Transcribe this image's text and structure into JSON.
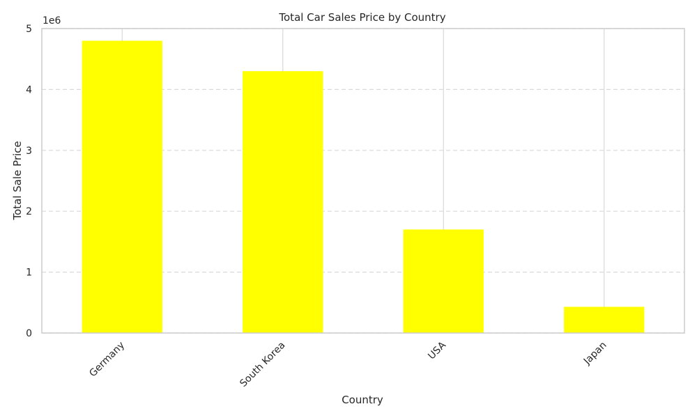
{
  "chart_data": {
    "type": "bar",
    "title": "Total Car Sales Price by Country",
    "xlabel": "Country",
    "ylabel": "Total Sale Price",
    "y_offset_label": "1e6",
    "categories": [
      "Germany",
      "South Korea",
      "USA",
      "Japan"
    ],
    "series": [
      {
        "values": [
          4800000,
          4300000,
          1700000,
          430000
        ]
      }
    ],
    "ylim": [
      0,
      5000000
    ],
    "yticks": [
      0,
      1000000,
      2000000,
      3000000,
      4000000,
      5000000
    ],
    "ytick_labels": [
      "0",
      "1",
      "2",
      "3",
      "4",
      "5"
    ],
    "grid": {
      "y": "dashed",
      "x": "solid"
    },
    "colors": {
      "bar": "#ffff00",
      "grid": "#d9d9d9",
      "spine": "#cccccc",
      "text": "#262626"
    },
    "xtick_rotation": 45
  }
}
